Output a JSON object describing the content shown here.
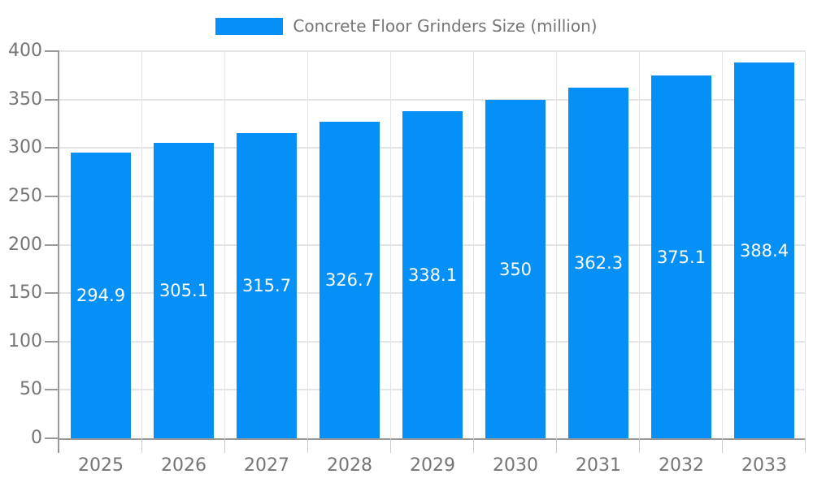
{
  "chart_data": {
    "type": "bar",
    "title": "Concrete Floor Grinders Size (million)",
    "categories": [
      "2025",
      "2026",
      "2027",
      "2028",
      "2029",
      "2030",
      "2031",
      "2032",
      "2033"
    ],
    "series": [
      {
        "name": "Concrete Floor Grinders Size (million)",
        "values": [
          294.9,
          305.1,
          315.7,
          326.7,
          338.1,
          350,
          362.3,
          375.1,
          388.4
        ],
        "value_labels": [
          "294.9",
          "305.1",
          "315.7",
          "326.7",
          "338.1",
          "350",
          "362.3",
          "375.1",
          "388.4"
        ]
      }
    ],
    "xlabel": "",
    "ylabel": "",
    "ylim": [
      0,
      400
    ],
    "ytick_interval": 50,
    "ytick_labels": [
      "0",
      "50",
      "100",
      "150",
      "200",
      "250",
      "300",
      "350",
      "400"
    ],
    "grid": true,
    "legend_position": "top-center",
    "value_label_position": "center-of-bar"
  },
  "colors": {
    "bar": "#0590f8",
    "label_text": "#757575",
    "value_text": "#ffffff",
    "axis_line": "#999999",
    "category_tick": "#cccccc",
    "gridline": "#e4e4e4",
    "background": "#ffffff"
  }
}
